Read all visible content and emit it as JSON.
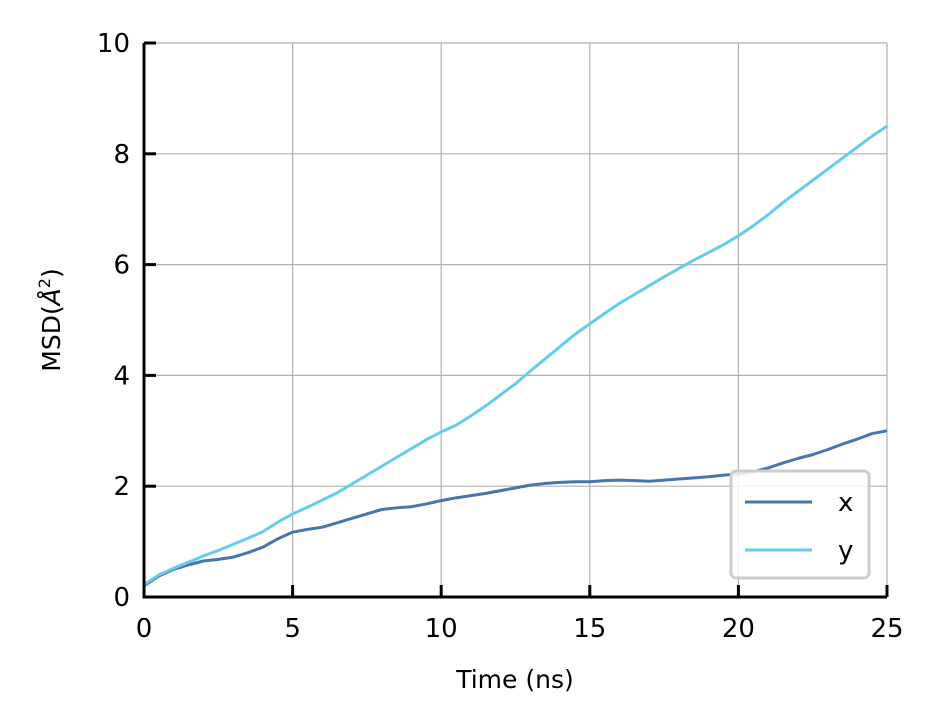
{
  "chart_data": {
    "type": "line",
    "title": "",
    "xlabel": "Time (ns)",
    "ylabel": "MSD(Å²)",
    "ylabel_base": "MSD(",
    "ylabel_unit": "Å",
    "ylabel_sup": "2",
    "ylabel_close": ")",
    "xlim": [
      0,
      25
    ],
    "ylim": [
      0,
      10
    ],
    "xticks": [
      "0",
      "5",
      "10",
      "15",
      "20",
      "25"
    ],
    "yticks": [
      "0",
      "2",
      "4",
      "6",
      "8",
      "10"
    ],
    "grid": true,
    "legend_position": "lower-right",
    "x": [
      0,
      0.5,
      1,
      1.5,
      2,
      2.5,
      3,
      3.5,
      4,
      4.5,
      5,
      5.5,
      6,
      6.5,
      7,
      7.5,
      8,
      8.5,
      9,
      9.5,
      10,
      10.5,
      11,
      11.5,
      12,
      12.5,
      13,
      13.5,
      14,
      14.5,
      15,
      15.5,
      16,
      16.5,
      17,
      17.5,
      18,
      18.5,
      19,
      19.5,
      20,
      20.5,
      21,
      21.5,
      22,
      22.5,
      23,
      23.5,
      24,
      24.5,
      25
    ],
    "series": [
      {
        "name": "x",
        "color": "#4676aa",
        "values": [
          0.2,
          0.38,
          0.5,
          0.58,
          0.65,
          0.68,
          0.72,
          0.8,
          0.9,
          1.05,
          1.17,
          1.22,
          1.26,
          1.34,
          1.42,
          1.5,
          1.58,
          1.61,
          1.63,
          1.68,
          1.74,
          1.79,
          1.83,
          1.87,
          1.92,
          1.97,
          2.02,
          2.05,
          2.07,
          2.08,
          2.08,
          2.1,
          2.11,
          2.1,
          2.09,
          2.11,
          2.13,
          2.15,
          2.17,
          2.2,
          2.22,
          2.26,
          2.33,
          2.42,
          2.5,
          2.57,
          2.66,
          2.76,
          2.85,
          2.95,
          3.0
        ]
      },
      {
        "name": "y",
        "color": "#66ccea",
        "values": [
          0.22,
          0.4,
          0.52,
          0.63,
          0.74,
          0.84,
          0.95,
          1.06,
          1.18,
          1.35,
          1.5,
          1.62,
          1.75,
          1.88,
          2.04,
          2.2,
          2.36,
          2.52,
          2.68,
          2.84,
          2.98,
          3.1,
          3.27,
          3.45,
          3.65,
          3.85,
          4.08,
          4.3,
          4.52,
          4.74,
          4.93,
          5.12,
          5.3,
          5.46,
          5.62,
          5.78,
          5.93,
          6.08,
          6.22,
          6.36,
          6.52,
          6.7,
          6.9,
          7.12,
          7.32,
          7.52,
          7.72,
          7.92,
          8.12,
          8.32,
          8.5
        ]
      }
    ]
  }
}
